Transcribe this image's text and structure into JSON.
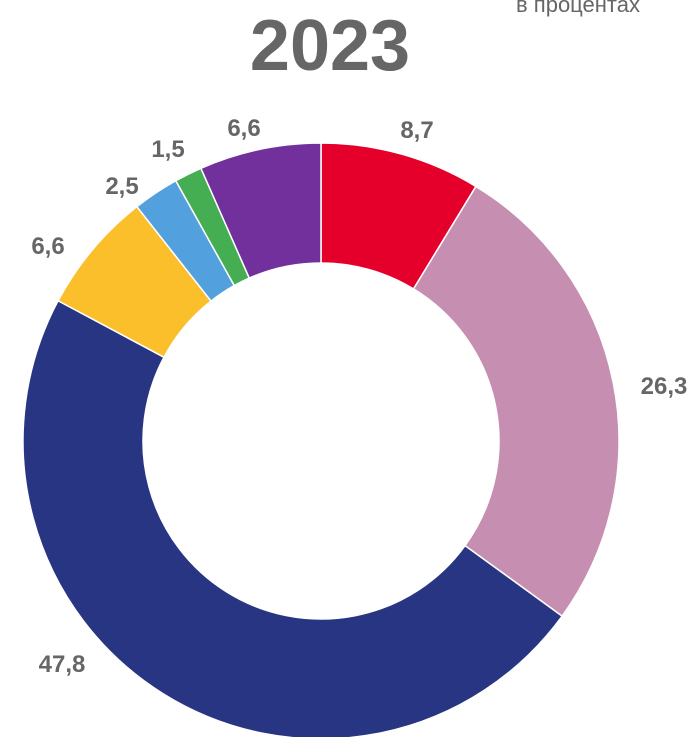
{
  "chart_data": {
    "type": "pie",
    "style": "donut",
    "title": "2023",
    "unit_label": "в процентах",
    "slices": [
      {
        "value": 8.7,
        "label": "8,7",
        "color": "#E4002B"
      },
      {
        "value": 26.3,
        "label": "26,3",
        "color": "#C68FB1"
      },
      {
        "value": 47.8,
        "label": "47,8",
        "color": "#283583"
      },
      {
        "value": 6.6,
        "label": "6,6",
        "color": "#FBBF2C"
      },
      {
        "value": 2.5,
        "label": "2,5",
        "color": "#52A0DE"
      },
      {
        "value": 1.5,
        "label": "1,5",
        "color": "#46AE52"
      },
      {
        "value": 6.6,
        "label": "6,6",
        "color": "#71309B"
      }
    ]
  }
}
